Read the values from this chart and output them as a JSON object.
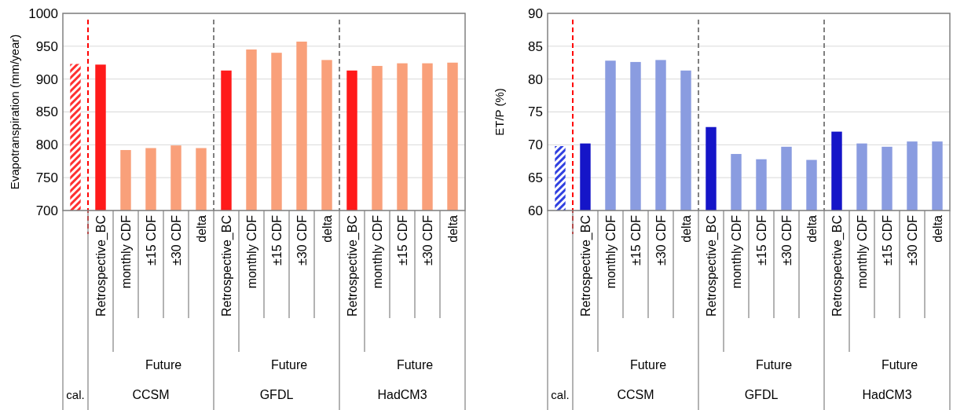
{
  "chart_data": [
    {
      "type": "bar",
      "ylabel": "Evapotranspiration (mm/year)",
      "categories": [
        null,
        "Retrospective_BC",
        "monthly CDF",
        "±15 CDF",
        "±30 CDF",
        "delta",
        "Retrospective_BC",
        "monthly CDF",
        "±15 CDF",
        "±30 CDF",
        "delta",
        "Retrospective_BC",
        "monthly CDF",
        "±15 CDF",
        "±30 CDF",
        "delta"
      ],
      "values": [
        923,
        922,
        792,
        795,
        799,
        795,
        913,
        945,
        940,
        957,
        929,
        913,
        920,
        924,
        924,
        925
      ],
      "colors": [
        "#ff3030",
        "#ff1a1a",
        "#f9a07a",
        "#f9a07a",
        "#f9a07a",
        "#f9a07a",
        "#ff1a1a",
        "#f9a07a",
        "#f9a07a",
        "#f9a07a",
        "#f9a07a",
        "#ff1a1a",
        "#f9a07a",
        "#f9a07a",
        "#f9a07a",
        "#f9a07a"
      ],
      "ylim": [
        700,
        1000
      ],
      "yticks": [
        700,
        750,
        800,
        850,
        900,
        950,
        1000
      ],
      "grid": "y",
      "ref_lines": [
        {
          "axis": "x",
          "value": "Retrospective_BC",
          "color": "#ff0000",
          "line_style": "dashed"
        }
      ],
      "annotations": [
        "cal.",
        "Future",
        "CCSM",
        "Future",
        "GFDL",
        "Future",
        "HadCM3"
      ]
    },
    {
      "type": "bar",
      "ylabel": "ET/P (%)",
      "categories": [
        null,
        "Retrospective_BC",
        "monthly CDF",
        "±15 CDF",
        "±30 CDF",
        "delta",
        "Retrospective_BC",
        "monthly CDF",
        "±15 CDF",
        "±30 CDF",
        "delta",
        "Retrospective_BC",
        "monthly CDF",
        "±15 CDF",
        "±30 CDF",
        "delta"
      ],
      "values": [
        69.8,
        70.2,
        82.8,
        82.6,
        82.9,
        81.3,
        72.7,
        68.6,
        67.8,
        69.7,
        67.7,
        72.0,
        70.2,
        69.7,
        70.5,
        70.5
      ],
      "colors": [
        "#3040e0",
        "#1515c8",
        "#8a9ce0",
        "#8a9ce0",
        "#8a9ce0",
        "#8a9ce0",
        "#1515c8",
        "#8a9ce0",
        "#8a9ce0",
        "#8a9ce0",
        "#8a9ce0",
        "#1515c8",
        "#8a9ce0",
        "#8a9ce0",
        "#8a9ce0",
        "#8a9ce0"
      ],
      "ylim": [
        60,
        90
      ],
      "yticks": [
        60,
        65,
        70,
        75,
        80,
        85,
        90
      ],
      "grid": "y",
      "ref_lines": [
        {
          "axis": "x",
          "value": "Retrospective_BC",
          "color": "#ff0000",
          "line_style": "dashed"
        }
      ],
      "annotations": [
        "cal.",
        "Future",
        "CCSM",
        "Future",
        "GFDL",
        "Future",
        "HadCM3"
      ]
    }
  ]
}
